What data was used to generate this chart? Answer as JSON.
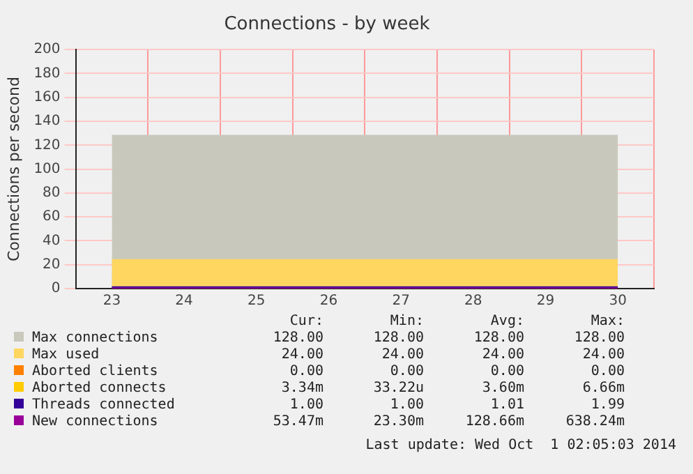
{
  "chart_data": {
    "type": "area",
    "title": "Connections - by week",
    "ylabel": "Connections per second",
    "categories": [
      "23",
      "24",
      "25",
      "26",
      "27",
      "28",
      "29",
      "30"
    ],
    "series": [
      {
        "name": "Max connections",
        "color": "#c8c8bc",
        "values": [
          128,
          128,
          128,
          128,
          128,
          128,
          128,
          128
        ]
      },
      {
        "name": "Max used",
        "color": "#ffd660",
        "values": [
          24,
          24,
          24,
          24,
          24,
          24,
          24,
          24
        ]
      },
      {
        "name": "Aborted clients",
        "type": "line",
        "color": "#ff8000",
        "values": [
          null,
          null,
          null,
          null,
          null,
          null,
          null,
          null
        ]
      },
      {
        "name": "Aborted connects",
        "type": "line",
        "color": "#ffcc00",
        "values": [
          null,
          null,
          null,
          null,
          null,
          null,
          null,
          null
        ]
      },
      {
        "name": "Threads connected",
        "type": "line",
        "color": "#330099",
        "values": [
          1,
          1,
          1,
          1,
          1,
          1,
          1,
          1
        ]
      },
      {
        "name": "New connections",
        "type": "line",
        "color": "#990099",
        "values": [
          0,
          0,
          0,
          0,
          0,
          0,
          0,
          0
        ]
      }
    ],
    "ylim": [
      0,
      200
    ],
    "yticks": [
      0,
      20,
      40,
      60,
      80,
      100,
      120,
      140,
      160,
      180,
      200
    ],
    "grid": true,
    "legend": "bottom",
    "annotations": [
      "Cur:",
      "Min:",
      "Avg:",
      "Max:",
      "128.00",
      "128.00",
      "128.00",
      "128.00",
      "24.00",
      "24.00",
      "24.00",
      "24.00",
      "0.00",
      "0.00",
      "0.00",
      "0.00",
      "3.34m",
      "33.22u",
      "3.60m",
      "6.66m",
      "1.00",
      "1.00",
      "1.01",
      "1.99",
      "53.47m",
      "23.30m",
      "128.66m",
      "638.24m",
      "Last update: Wed Oct  1 02:05:03 2014"
    ]
  }
}
